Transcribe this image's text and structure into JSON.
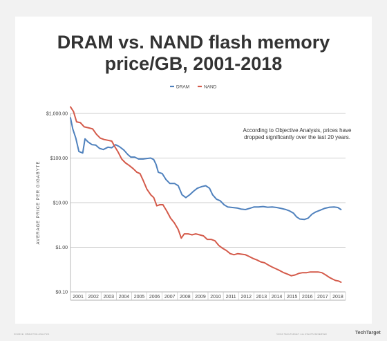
{
  "chart_data": {
    "type": "line",
    "title_line1": "DRAM vs. NAND flash memory",
    "title_line2": "price/GB, 2001-2018",
    "ylabel": "AVERAGE PRICE PER GIGABYTE",
    "y_scale": "log",
    "ylim": [
      0.1,
      1000
    ],
    "y_ticks": [
      {
        "value": 1000,
        "label": "$1,000.00"
      },
      {
        "value": 100,
        "label": "$100.00"
      },
      {
        "value": 10,
        "label": "$10.00"
      },
      {
        "value": 1,
        "label": "$1.00"
      },
      {
        "value": 0.1,
        "label": "$0.10"
      }
    ],
    "xlim": [
      2001,
      2019
    ],
    "x_ticks": [
      "2001",
      "2002",
      "2003",
      "2004",
      "2005",
      "2006",
      "2007",
      "2008",
      "2009",
      "2010",
      "2011",
      "2012",
      "2013",
      "2014",
      "2015",
      "2016",
      "2017",
      "2018"
    ],
    "grid": "horizontal",
    "legend_position": "top-center",
    "annotation": "According to Objective Analysis, prices have dropped significantly over the last 20 years.",
    "annotation_lines": [
      "According to Objective Analysis, prices have",
      "dropped significantly over the last 20 years."
    ],
    "series": [
      {
        "name": "DRAM",
        "color": "#4f81bd",
        "points": [
          [
            2001.0,
            800
          ],
          [
            2001.15,
            450
          ],
          [
            2001.35,
            280
          ],
          [
            2001.55,
            140
          ],
          [
            2001.8,
            130
          ],
          [
            2001.95,
            270
          ],
          [
            2002.15,
            230
          ],
          [
            2002.4,
            200
          ],
          [
            2002.65,
            195
          ],
          [
            2002.9,
            165
          ],
          [
            2003.15,
            155
          ],
          [
            2003.45,
            175
          ],
          [
            2003.7,
            170
          ],
          [
            2003.95,
            200
          ],
          [
            2004.2,
            180
          ],
          [
            2004.5,
            150
          ],
          [
            2004.75,
            120
          ],
          [
            2004.95,
            105
          ],
          [
            2005.2,
            105
          ],
          [
            2005.45,
            95
          ],
          [
            2005.75,
            95
          ],
          [
            2006.0,
            98
          ],
          [
            2006.25,
            100
          ],
          [
            2006.45,
            92
          ],
          [
            2006.6,
            72
          ],
          [
            2006.75,
            48
          ],
          [
            2007.0,
            45
          ],
          [
            2007.25,
            33
          ],
          [
            2007.5,
            27
          ],
          [
            2007.8,
            27
          ],
          [
            2008.05,
            24
          ],
          [
            2008.3,
            15
          ],
          [
            2008.55,
            13
          ],
          [
            2008.8,
            15
          ],
          [
            2009.05,
            18
          ],
          [
            2009.3,
            21
          ],
          [
            2009.6,
            23
          ],
          [
            2009.85,
            24
          ],
          [
            2010.1,
            21
          ],
          [
            2010.3,
            15
          ],
          [
            2010.55,
            12
          ],
          [
            2010.8,
            11
          ],
          [
            2011.05,
            9
          ],
          [
            2011.3,
            8
          ],
          [
            2011.6,
            7.8
          ],
          [
            2011.9,
            7.6
          ],
          [
            2012.15,
            7.2
          ],
          [
            2012.45,
            7.0
          ],
          [
            2012.75,
            7.5
          ],
          [
            2013.0,
            8.0
          ],
          [
            2013.3,
            8.0
          ],
          [
            2013.6,
            8.2
          ],
          [
            2013.9,
            7.9
          ],
          [
            2014.2,
            8.0
          ],
          [
            2014.5,
            7.8
          ],
          [
            2014.8,
            7.4
          ],
          [
            2015.1,
            7.0
          ],
          [
            2015.35,
            6.5
          ],
          [
            2015.6,
            5.8
          ],
          [
            2015.8,
            4.8
          ],
          [
            2016.0,
            4.3
          ],
          [
            2016.3,
            4.2
          ],
          [
            2016.55,
            4.5
          ],
          [
            2016.8,
            5.5
          ],
          [
            2017.05,
            6.2
          ],
          [
            2017.35,
            6.8
          ],
          [
            2017.65,
            7.5
          ],
          [
            2017.95,
            7.9
          ],
          [
            2018.25,
            8.0
          ],
          [
            2018.5,
            7.8
          ],
          [
            2018.7,
            7.0
          ]
        ]
      },
      {
        "name": "NAND",
        "color": "#d45a4a",
        "points": [
          [
            2001.0,
            1400
          ],
          [
            2001.2,
            1100
          ],
          [
            2001.4,
            650
          ],
          [
            2001.65,
            620
          ],
          [
            2001.9,
            500
          ],
          [
            2002.15,
            480
          ],
          [
            2002.45,
            450
          ],
          [
            2002.7,
            340
          ],
          [
            2002.95,
            280
          ],
          [
            2003.2,
            260
          ],
          [
            2003.45,
            250
          ],
          [
            2003.7,
            240
          ],
          [
            2003.9,
            180
          ],
          [
            2004.1,
            140
          ],
          [
            2004.35,
            95
          ],
          [
            2004.6,
            78
          ],
          [
            2004.85,
            68
          ],
          [
            2005.1,
            58
          ],
          [
            2005.35,
            48
          ],
          [
            2005.55,
            45
          ],
          [
            2005.75,
            32
          ],
          [
            2006.0,
            20
          ],
          [
            2006.25,
            15
          ],
          [
            2006.45,
            13
          ],
          [
            2006.65,
            8.5
          ],
          [
            2006.85,
            9.0
          ],
          [
            2007.05,
            9.0
          ],
          [
            2007.3,
            6.5
          ],
          [
            2007.55,
            4.5
          ],
          [
            2007.8,
            3.5
          ],
          [
            2008.05,
            2.5
          ],
          [
            2008.25,
            1.6
          ],
          [
            2008.45,
            2.0
          ],
          [
            2008.7,
            2.0
          ],
          [
            2008.95,
            1.9
          ],
          [
            2009.2,
            2.0
          ],
          [
            2009.45,
            1.9
          ],
          [
            2009.7,
            1.8
          ],
          [
            2009.95,
            1.5
          ],
          [
            2010.2,
            1.5
          ],
          [
            2010.45,
            1.4
          ],
          [
            2010.7,
            1.1
          ],
          [
            2010.95,
            0.95
          ],
          [
            2011.2,
            0.85
          ],
          [
            2011.45,
            0.72
          ],
          [
            2011.7,
            0.68
          ],
          [
            2011.95,
            0.72
          ],
          [
            2012.2,
            0.7
          ],
          [
            2012.45,
            0.68
          ],
          [
            2012.7,
            0.62
          ],
          [
            2012.95,
            0.56
          ],
          [
            2013.2,
            0.52
          ],
          [
            2013.45,
            0.47
          ],
          [
            2013.7,
            0.45
          ],
          [
            2013.95,
            0.4
          ],
          [
            2014.2,
            0.36
          ],
          [
            2014.45,
            0.33
          ],
          [
            2014.7,
            0.3
          ],
          [
            2014.95,
            0.27
          ],
          [
            2015.2,
            0.25
          ],
          [
            2015.45,
            0.23
          ],
          [
            2015.7,
            0.24
          ],
          [
            2015.95,
            0.26
          ],
          [
            2016.2,
            0.27
          ],
          [
            2016.45,
            0.27
          ],
          [
            2016.7,
            0.28
          ],
          [
            2016.95,
            0.28
          ],
          [
            2017.2,
            0.28
          ],
          [
            2017.45,
            0.27
          ],
          [
            2017.7,
            0.24
          ],
          [
            2017.95,
            0.21
          ],
          [
            2018.2,
            0.19
          ],
          [
            2018.35,
            0.18
          ],
          [
            2018.55,
            0.175
          ],
          [
            2018.7,
            0.165
          ]
        ]
      }
    ]
  },
  "footer": {
    "source": "SOURCE: OBJECTIVE ANALYSIS",
    "rights": "©2019 TECHTARGET. ALL RIGHTS RESERVED",
    "brand": "TechTarget"
  }
}
